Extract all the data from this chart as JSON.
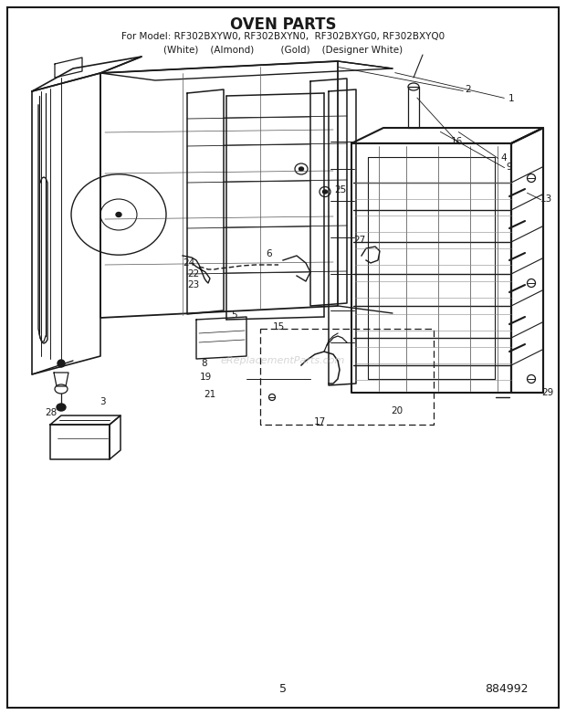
{
  "title": "OVEN PARTS",
  "subtitle_line1": "For Model: RF302BXYW0, RF302BXYN0,  RF302BXYG0, RF302BXYQ0",
  "subtitle_line2": "(White)    (Almond)         (Gold)    (Designer White)",
  "page_number": "5",
  "part_number": "884992",
  "background_color": "#ffffff",
  "border_color": "#000000",
  "text_color": "#1a1a1a",
  "watermark": "eReplacementParts.com",
  "title_fontsize": 12,
  "subtitle_fontsize": 7.5,
  "label_fontsize": 7.5,
  "lc": "#1a1a1a",
  "lw": 0.9
}
